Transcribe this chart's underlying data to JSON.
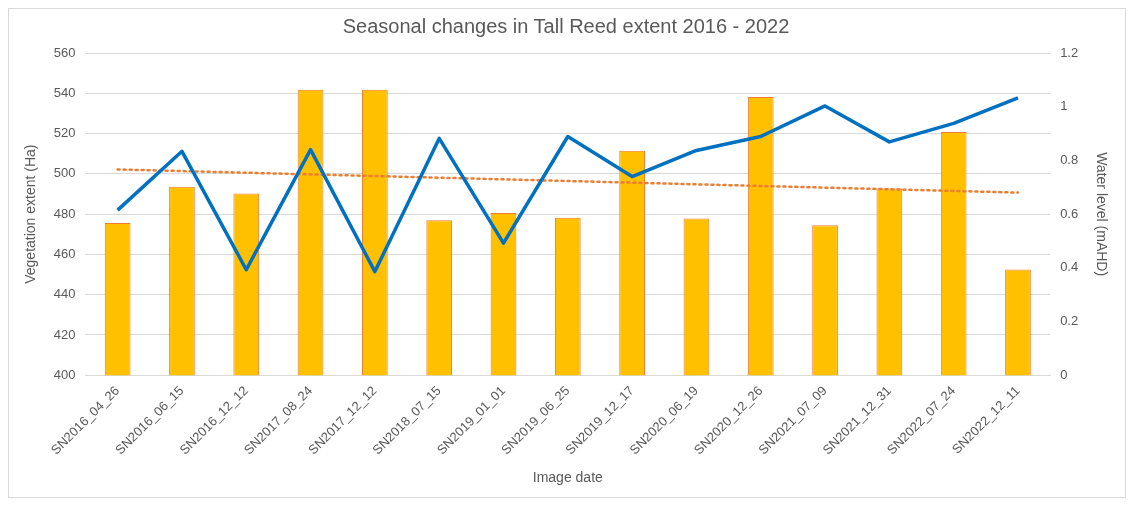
{
  "chart_data": {
    "type": "bar",
    "title": "Seasonal changes in Tall Reed extent 2016 - 2022",
    "xlabel": "Image date",
    "ylabel": "Vegetation extent (Ha)",
    "y2label": "Water level (mAHD)",
    "categories": [
      "SN2016_04_26",
      "SN2016_06_15",
      "SN2016_12_12",
      "SN2017_08_24",
      "SN2017_12_12",
      "SN2018_07_15",
      "SN2019_01_01",
      "SN2019_06_25",
      "SN2019_12_17",
      "SN2020_06_19",
      "SN2020_12_26",
      "SN2021_07_09",
      "SN2021_12_31",
      "SN2022_07_24",
      "SN2022_12_11"
    ],
    "series": [
      {
        "color": "#ffc000",
        "values": [
          475.6,
          493.6,
          490.2,
          541.8,
          541.8,
          477,
          480.6,
          478.2,
          511.5,
          477.8,
          538.2,
          474.5,
          492.7,
          520.8,
          452.5
        ]
      },
      {
        "type": "line",
        "axis": "y2",
        "color": "#0070c0",
        "values": [
          0.615,
          0.834,
          0.393,
          0.84,
          0.386,
          0.882,
          0.492,
          0.889,
          0.74,
          0.837,
          0.889,
          1.003,
          0.869,
          0.938,
          1.033
        ]
      },
      {
        "type": "line",
        "color": "#ed7d31",
        "line_style": "dotted",
        "x": [
          "SN2016_04_26",
          "SN2022_12_11"
        ],
        "values": [
          502.2,
          490.7
        ]
      }
    ],
    "ylim": [
      400,
      560
    ],
    "yticks": [
      400,
      420,
      440,
      460,
      480,
      500,
      520,
      540,
      560
    ],
    "y2lim": [
      0,
      1.2
    ],
    "y2ticks": [
      0,
      0.2,
      0.4,
      0.6,
      0.8,
      1,
      1.2
    ],
    "grid": "y",
    "legend": false,
    "marker": "none"
  }
}
